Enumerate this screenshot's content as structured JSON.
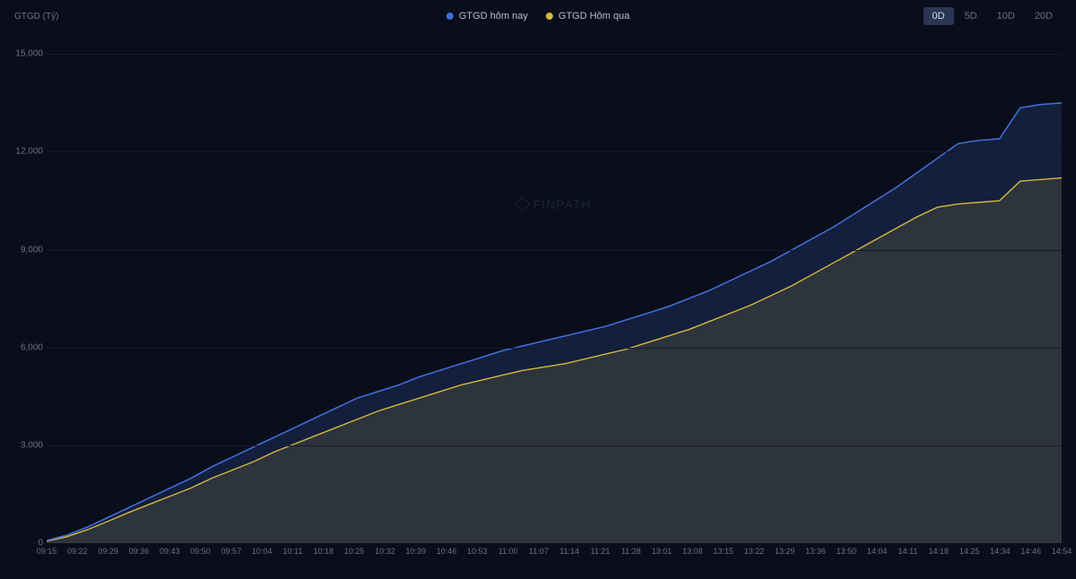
{
  "chart": {
    "type": "area",
    "y_axis_title": "GTGD (Tỷ)",
    "watermark": "FINPATH",
    "background_color": "#0a0e1a",
    "grid_color": "#141a2e",
    "axis_label_color": "#6a7084",
    "legend_label_color": "#b8bdc9",
    "title_fontsize": 10,
    "tick_fontsize": 10,
    "legend": [
      {
        "label": "GTGD hôm nay",
        "color": "#3f6dd6"
      },
      {
        "label": "GTGD Hôm qua",
        "color": "#d4b83f"
      }
    ],
    "range_buttons": [
      {
        "label": "0D",
        "active": true
      },
      {
        "label": "5D",
        "active": false
      },
      {
        "label": "10D",
        "active": false
      },
      {
        "label": "20D",
        "active": false
      }
    ],
    "y_ticks": [
      0,
      3000,
      6000,
      9000,
      12000,
      15000
    ],
    "y_tick_labels": [
      "0",
      "3,000",
      "6,000",
      "9,000",
      "12,000",
      "15,000"
    ],
    "ylim": [
      0,
      15500
    ],
    "x_ticks": [
      "09:15",
      "09:22",
      "09:29",
      "09:36",
      "09:43",
      "09:50",
      "09:57",
      "10:04",
      "10:11",
      "10:18",
      "10:25",
      "10:32",
      "10:39",
      "10:46",
      "10:53",
      "11:00",
      "11:07",
      "11:14",
      "11:21",
      "11:28",
      "13:01",
      "13:08",
      "13:15",
      "13:22",
      "13:29",
      "13:36",
      "13:50",
      "14:04",
      "14:11",
      "14:18",
      "14:25",
      "14:34",
      "14:46",
      "14:54"
    ],
    "series_today": {
      "color": "#3f6dd6",
      "fill_opacity": 0.18,
      "line_width": 1.6,
      "points": [
        [
          0,
          80
        ],
        [
          1,
          250
        ],
        [
          2,
          500
        ],
        [
          3,
          800
        ],
        [
          4,
          1100
        ],
        [
          5,
          1400
        ],
        [
          6,
          1700
        ],
        [
          7,
          2000
        ],
        [
          8,
          2350
        ],
        [
          9,
          2650
        ],
        [
          10,
          2950
        ],
        [
          11,
          3250
        ],
        [
          12,
          3550
        ],
        [
          13,
          3850
        ],
        [
          14,
          4150
        ],
        [
          15,
          4450
        ],
        [
          16,
          4650
        ],
        [
          17,
          4850
        ],
        [
          18,
          5100
        ],
        [
          19,
          5300
        ],
        [
          20,
          5500
        ],
        [
          21,
          5700
        ],
        [
          22,
          5900
        ],
        [
          23,
          6050
        ],
        [
          24,
          6200
        ],
        [
          25,
          6350
        ],
        [
          26,
          6500
        ],
        [
          27,
          6650
        ],
        [
          28,
          6850
        ],
        [
          29,
          7050
        ],
        [
          30,
          7250
        ],
        [
          31,
          7500
        ],
        [
          32,
          7750
        ],
        [
          33,
          8050
        ],
        [
          34,
          8350
        ],
        [
          35,
          8650
        ],
        [
          36,
          9000
        ],
        [
          37,
          9350
        ],
        [
          38,
          9700
        ],
        [
          39,
          10100
        ],
        [
          40,
          10500
        ],
        [
          41,
          10900
        ],
        [
          42,
          11350
        ],
        [
          43,
          11800
        ],
        [
          44,
          12250
        ],
        [
          45,
          12350
        ],
        [
          46,
          12400
        ],
        [
          47,
          13350
        ],
        [
          48,
          13450
        ],
        [
          49,
          13500
        ]
      ]
    },
    "series_yesterday": {
      "color": "#d4b83f",
      "fill_opacity": 0.14,
      "line_width": 1.4,
      "points": [
        [
          0,
          60
        ],
        [
          1,
          200
        ],
        [
          2,
          420
        ],
        [
          3,
          680
        ],
        [
          4,
          950
        ],
        [
          5,
          1200
        ],
        [
          6,
          1450
        ],
        [
          7,
          1700
        ],
        [
          8,
          2000
        ],
        [
          9,
          2250
        ],
        [
          10,
          2500
        ],
        [
          11,
          2800
        ],
        [
          12,
          3050
        ],
        [
          13,
          3300
        ],
        [
          14,
          3550
        ],
        [
          15,
          3800
        ],
        [
          16,
          4050
        ],
        [
          17,
          4250
        ],
        [
          18,
          4450
        ],
        [
          19,
          4650
        ],
        [
          20,
          4850
        ],
        [
          21,
          5000
        ],
        [
          22,
          5150
        ],
        [
          23,
          5300
        ],
        [
          24,
          5400
        ],
        [
          25,
          5500
        ],
        [
          26,
          5650
        ],
        [
          27,
          5800
        ],
        [
          28,
          5950
        ],
        [
          29,
          6150
        ],
        [
          30,
          6350
        ],
        [
          31,
          6550
        ],
        [
          32,
          6800
        ],
        [
          33,
          7050
        ],
        [
          34,
          7300
        ],
        [
          35,
          7600
        ],
        [
          36,
          7900
        ],
        [
          37,
          8250
        ],
        [
          38,
          8600
        ],
        [
          39,
          8950
        ],
        [
          40,
          9300
        ],
        [
          41,
          9650
        ],
        [
          42,
          10000
        ],
        [
          43,
          10300
        ],
        [
          44,
          10400
        ],
        [
          45,
          10450
        ],
        [
          46,
          10500
        ],
        [
          47,
          11100
        ],
        [
          48,
          11150
        ],
        [
          49,
          11200
        ]
      ]
    },
    "x_domain": [
      0,
      49
    ]
  }
}
